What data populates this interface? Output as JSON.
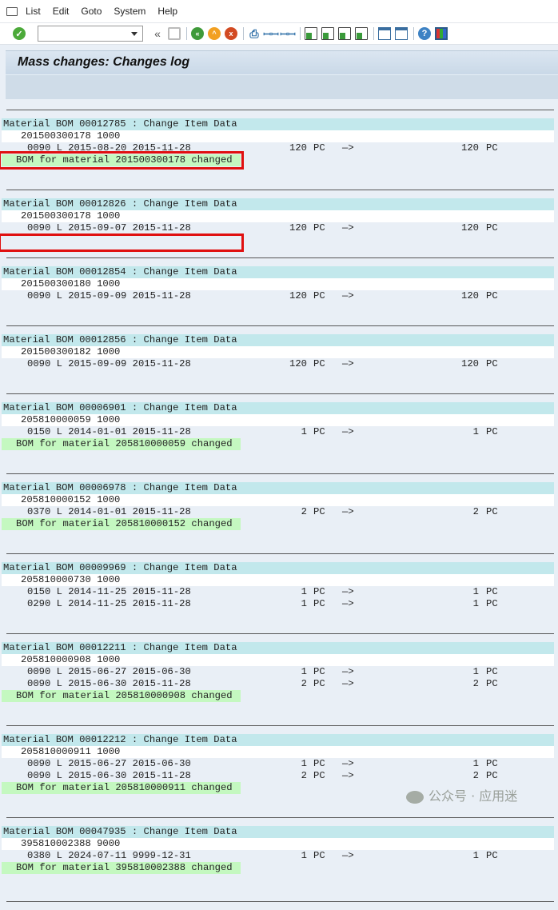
{
  "menu": [
    "List",
    "Edit",
    "Goto",
    "System",
    "Help"
  ],
  "toolbar": {
    "command_field": "",
    "icons": [
      "enter-icon",
      "command-dropdown-icon",
      "collapse-icon",
      "save-icon",
      "back-icon",
      "exit-icon",
      "cancel-icon",
      "print-icon",
      "find-icon",
      "find-next-icon",
      "first-page-icon",
      "previous-page-icon",
      "next-page-icon",
      "last-page-icon",
      "new-session-icon",
      "shortcut-icon",
      "help-icon",
      "layout-icon"
    ]
  },
  "title": "Mass changes: Changes log",
  "blocks": [
    {
      "header": "Material BOM 00012785 : Change Item Data",
      "material": "201500300178 1000",
      "items": [
        {
          "item": "0090 L 2015-08-20 2015-11-28",
          "old_qty": "120",
          "old_unit": "PC",
          "new_qty": "120",
          "new_unit": "PC"
        }
      ],
      "status": "BOM for material 201500300178 changed",
      "highlight": true
    },
    {
      "header": "Material BOM 00012826 : Change Item Data",
      "material": "201500300178 1000",
      "items": [
        {
          "item": "0090 L 2015-09-07 2015-11-28",
          "old_qty": "120",
          "old_unit": "PC",
          "new_qty": "120",
          "new_unit": "PC"
        }
      ],
      "status": "",
      "empty_highlight": true
    },
    {
      "header": "Material BOM 00012854 : Change Item Data",
      "material": "201500300180 1000",
      "items": [
        {
          "item": "0090 L 2015-09-09 2015-11-28",
          "old_qty": "120",
          "old_unit": "PC",
          "new_qty": "120",
          "new_unit": "PC"
        }
      ],
      "status": null
    },
    {
      "header": "Material BOM 00012856 : Change Item Data",
      "material": "201500300182 1000",
      "items": [
        {
          "item": "0090 L 2015-09-09 2015-11-28",
          "old_qty": "120",
          "old_unit": "PC",
          "new_qty": "120",
          "new_unit": "PC"
        }
      ],
      "status": null
    },
    {
      "header": "Material BOM 00006901 : Change Item Data",
      "material": "205810000059 1000",
      "items": [
        {
          "item": "0150 L 2014-01-01 2015-11-28",
          "old_qty": "1",
          "old_unit": "PC",
          "new_qty": "1",
          "new_unit": "PC"
        }
      ],
      "status": "BOM for material 205810000059 changed"
    },
    {
      "header": "Material BOM 00006978 : Change Item Data",
      "material": "205810000152 1000",
      "items": [
        {
          "item": "0370 L 2014-01-01 2015-11-28",
          "old_qty": "2",
          "old_unit": "PC",
          "new_qty": "2",
          "new_unit": "PC"
        }
      ],
      "status": "BOM for material 205810000152 changed"
    },
    {
      "header": "Material BOM 00009969 : Change Item Data",
      "material": "205810000730 1000",
      "items": [
        {
          "item": "0150 L 2014-11-25 2015-11-28",
          "old_qty": "1",
          "old_unit": "PC",
          "new_qty": "1",
          "new_unit": "PC"
        },
        {
          "item": "0290 L 2014-11-25 2015-11-28",
          "old_qty": "1",
          "old_unit": "PC",
          "new_qty": "1",
          "new_unit": "PC"
        }
      ],
      "status": null
    },
    {
      "header": "Material BOM 00012211 : Change Item Data",
      "material": "205810000908 1000",
      "items": [
        {
          "item": "0090 L 2015-06-27 2015-06-30",
          "old_qty": "1",
          "old_unit": "PC",
          "new_qty": "1",
          "new_unit": "PC"
        },
        {
          "item": "0090 L 2015-06-30 2015-11-28",
          "old_qty": "2",
          "old_unit": "PC",
          "new_qty": "2",
          "new_unit": "PC"
        }
      ],
      "status": "BOM for material 205810000908 changed"
    },
    {
      "header": "Material BOM 00012212 : Change Item Data",
      "material": "205810000911 1000",
      "items": [
        {
          "item": "0090 L 2015-06-27 2015-06-30",
          "old_qty": "1",
          "old_unit": "PC",
          "new_qty": "1",
          "new_unit": "PC"
        },
        {
          "item": "0090 L 2015-06-30 2015-11-28",
          "old_qty": "2",
          "old_unit": "PC",
          "new_qty": "2",
          "new_unit": "PC"
        }
      ],
      "status": "BOM for material 205810000911 changed"
    },
    {
      "header": "Material BOM 00047935 : Change Item Data",
      "material": "395810002388 9000",
      "items": [
        {
          "item": "0380 L 2024-07-11 9999-12-31",
          "old_qty": "1",
          "old_unit": "PC",
          "new_qty": "1",
          "new_unit": "PC"
        }
      ],
      "status": "BOM for material 395810002388 changed"
    }
  ],
  "arrow": "—>",
  "watermark": "公众号 · 应用迷"
}
